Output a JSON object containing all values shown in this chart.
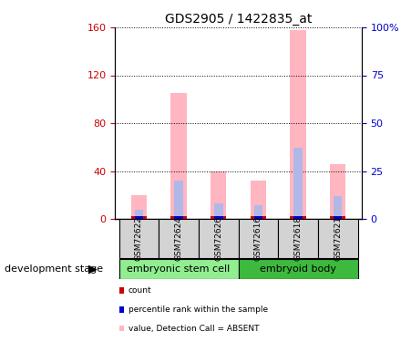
{
  "title": "GDS2905 / 1422835_at",
  "samples": [
    "GSM72622",
    "GSM72624",
    "GSM72626",
    "GSM72616",
    "GSM72618",
    "GSM72621"
  ],
  "groups": [
    {
      "label": "embryonic stem cell",
      "indices": [
        0,
        1,
        2
      ],
      "color": "#90ee90"
    },
    {
      "label": "embryoid body",
      "indices": [
        3,
        4,
        5
      ],
      "color": "#3dba3d"
    }
  ],
  "value_absent": [
    20,
    105,
    40,
    32,
    158,
    46
  ],
  "rank_absent": [
    5,
    20,
    8,
    7,
    37,
    12
  ],
  "ylim_left": [
    0,
    160
  ],
  "ylim_right": [
    0,
    100
  ],
  "yticks_left": [
    0,
    40,
    80,
    120,
    160
  ],
  "yticks_right": [
    0,
    25,
    50,
    75,
    100
  ],
  "ytick_labels_left": [
    "0",
    "40",
    "80",
    "120",
    "160"
  ],
  "ytick_labels_right": [
    "0",
    "25",
    "50",
    "75",
    "100%"
  ],
  "color_value_absent": "#ffb6c1",
  "color_rank_absent": "#b0b8e8",
  "color_count": "#cc0000",
  "color_rank_present": "#0000cc",
  "bg_color_samples": "#d3d3d3",
  "bg_color_group1": "#90ee90",
  "bg_color_group2": "#3dba3d",
  "group_label": "development stage"
}
